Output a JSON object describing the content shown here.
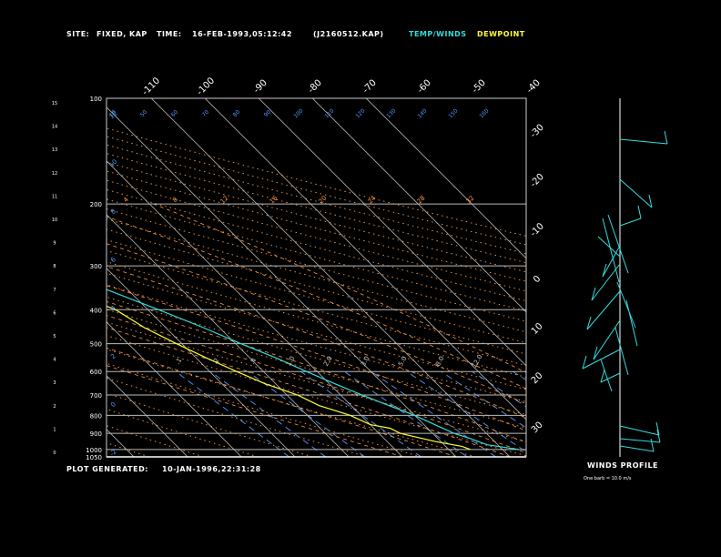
{
  "header": {
    "site_label": "SITE:",
    "site_value": "FIXED, KAP",
    "time_label": "TIME:",
    "time_value": "16-FEB-1993,05:12:42",
    "file_id": "(J2160512.KAP)",
    "temp_winds_label": "TEMP/WINDS",
    "dewpoint_label": "DEWPOINT"
  },
  "footer": {
    "plot_generated_label": "PLOT GENERATED:",
    "plot_generated_value": "10-JAN-1996,22:31:28",
    "winds_profile_label": "WINDS PROFILE",
    "barb_note": "One barb = 10.0 m/s"
  },
  "colors": {
    "temperature": "#33dddd",
    "dewpoint": "#ffff33",
    "wind": "#33dddd",
    "grid": "#bbbbbb",
    "isotherm": "#bbbbbb",
    "dry_adiabat": "#ff9944",
    "moist_adiabat": "#ff9944",
    "mixing_ratio": "#5599ff"
  },
  "chart_data": {
    "type": "skew-t",
    "title": "",
    "xlabel": "",
    "ylabel": "",
    "pressure_levels_hpa": [
      1050,
      1000,
      900,
      800,
      700,
      600,
      500,
      400,
      300,
      200,
      100
    ],
    "pressure_tick_labels": [
      "1050",
      "1000",
      "900",
      "800",
      "700",
      "600",
      "500",
      "400",
      "300",
      "200",
      "100"
    ],
    "height_km_ticks": [
      "0",
      "1",
      "2",
      "3",
      "4",
      "5",
      "6",
      "7",
      "8",
      "9",
      "10",
      "11",
      "12",
      "13",
      "14",
      "15"
    ],
    "top_temp_ticks": [
      "-110",
      "-100",
      "-90",
      "-80",
      "-70",
      "-60",
      "-50",
      "-40"
    ],
    "right_temp_ticks": [
      "-30",
      "-20",
      "-10",
      "0",
      "10",
      "20",
      "30"
    ],
    "dry_adiabat_labels": [
      "12",
      "10",
      "8",
      "6",
      "4",
      "2",
      "0",
      "-2"
    ],
    "theta_labels": [
      "4",
      "8",
      "12",
      "16",
      "20",
      "24",
      "28",
      "32"
    ],
    "mixing_ratio_labels": [
      ".1",
      ".2",
      ".4",
      "1.0",
      "2.0",
      "3.0",
      "5.0",
      "8.0",
      "12.0"
    ],
    "temperature_profile": {
      "name": "TEMP/WINDS",
      "points": [
        {
          "p": 1000,
          "t": 3
        },
        {
          "p": 970,
          "t": -2
        },
        {
          "p": 930,
          "t": -4
        },
        {
          "p": 900,
          "t": -6
        },
        {
          "p": 850,
          "t": -8
        },
        {
          "p": 800,
          "t": -10
        },
        {
          "p": 750,
          "t": -13
        },
        {
          "p": 700,
          "t": -16
        },
        {
          "p": 650,
          "t": -19
        },
        {
          "p": 600,
          "t": -22
        },
        {
          "p": 550,
          "t": -25
        },
        {
          "p": 500,
          "t": -29
        },
        {
          "p": 450,
          "t": -33
        },
        {
          "p": 400,
          "t": -38
        },
        {
          "p": 350,
          "t": -44
        },
        {
          "p": 300,
          "t": -50
        },
        {
          "p": 250,
          "t": -57
        },
        {
          "p": 200,
          "t": -62
        },
        {
          "p": 170,
          "t": -64
        },
        {
          "p": 150,
          "t": -66
        },
        {
          "p": 130,
          "t": -70
        },
        {
          "p": 120,
          "t": -74
        },
        {
          "p": 110,
          "t": -76
        },
        {
          "p": 100,
          "t": -77
        }
      ]
    },
    "dewpoint_profile": {
      "name": "DEWPOINT",
      "points": [
        {
          "p": 1000,
          "t": -6
        },
        {
          "p": 980,
          "t": -7
        },
        {
          "p": 950,
          "t": -11
        },
        {
          "p": 900,
          "t": -16
        },
        {
          "p": 870,
          "t": -17
        },
        {
          "p": 850,
          "t": -20
        },
        {
          "p": 800,
          "t": -22
        },
        {
          "p": 750,
          "t": -26
        },
        {
          "p": 700,
          "t": -28
        },
        {
          "p": 650,
          "t": -32
        },
        {
          "p": 600,
          "t": -35
        },
        {
          "p": 550,
          "t": -38
        },
        {
          "p": 500,
          "t": -41
        },
        {
          "p": 450,
          "t": -44
        },
        {
          "p": 400,
          "t": -46
        },
        {
          "p": 350,
          "t": -52
        },
        {
          "p": 300,
          "t": -58
        },
        {
          "p": 250,
          "t": -63
        },
        {
          "p": 200,
          "t": -69
        },
        {
          "p": 170,
          "t": -72
        },
        {
          "p": 150,
          "t": -76
        },
        {
          "p": 130,
          "t": -82
        },
        {
          "p": 115,
          "t": -83
        },
        {
          "p": 100,
          "t": -84
        }
      ]
    }
  }
}
